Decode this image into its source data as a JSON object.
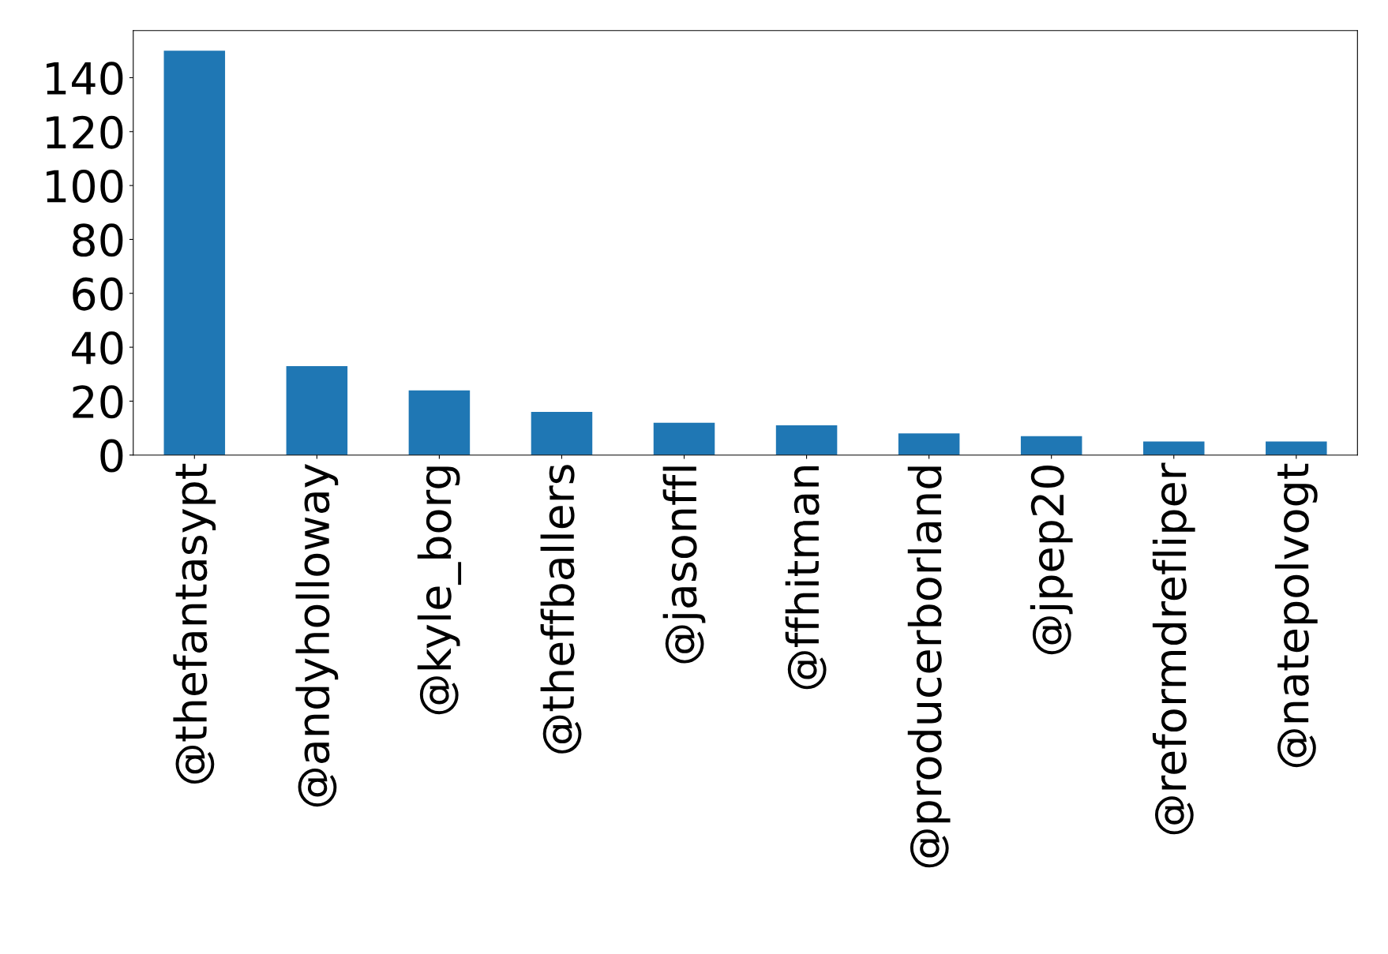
{
  "chart_data": {
    "type": "bar",
    "categories": [
      "@thefantasypt",
      "@andyholloway",
      "@kyle_borg",
      "@theffballers",
      "@jasonffl",
      "@ffhitman",
      "@producerborland",
      "@jpep20",
      "@reformdrefliper",
      "@natepolvogt"
    ],
    "values": [
      150,
      33,
      24,
      16,
      12,
      11,
      8,
      7,
      5,
      5
    ],
    "color": "#1f77b4",
    "ylim": [
      0,
      157.5
    ],
    "yticks": [
      0,
      20,
      40,
      60,
      80,
      100,
      120,
      140
    ],
    "grid": false,
    "legend": false
  }
}
